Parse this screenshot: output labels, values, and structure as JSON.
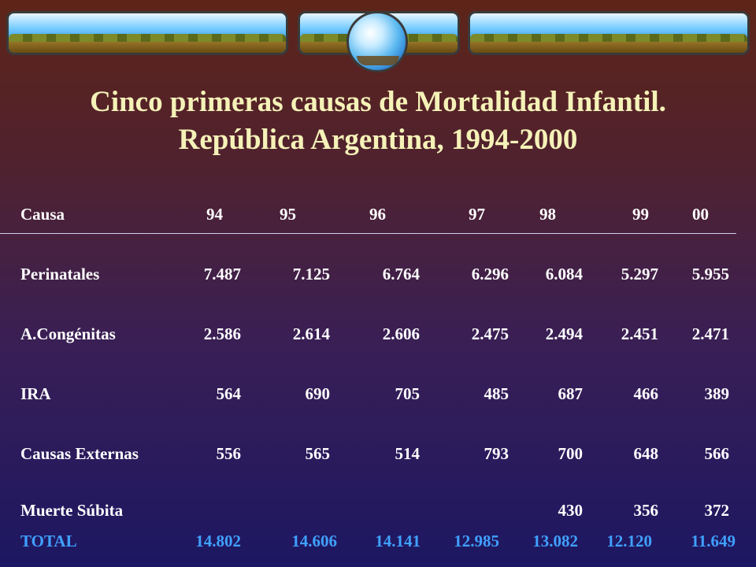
{
  "title": {
    "line1": "Cinco primeras causas de Mortalidad Infantil.",
    "line2": "República Argentina, 1994-2000"
  },
  "table": {
    "header": {
      "label": "Causa",
      "years": [
        "94",
        "95",
        "96",
        "97",
        "98",
        "99",
        "00"
      ]
    },
    "rows": [
      {
        "label": "Perinatales",
        "values": [
          "7.487",
          "7.125",
          "6.764",
          "6.296",
          "6.084",
          "5.297",
          "5.955"
        ]
      },
      {
        "label": "A.Congénitas",
        "values": [
          "2.586",
          "2.614",
          "2.606",
          "2.475",
          "2.494",
          "2.451",
          "2.471"
        ]
      },
      {
        "label": "IRA",
        "values": [
          "564",
          "690",
          "705",
          "485",
          "687",
          "466",
          "389"
        ]
      },
      {
        "label": "Causas Externas",
        "values": [
          "556",
          "565",
          "514",
          "793",
          "700",
          "648",
          "566"
        ]
      },
      {
        "label": "Muerte Súbita",
        "values": [
          "",
          "",
          "",
          "",
          "430",
          "356",
          "372"
        ]
      }
    ],
    "total": {
      "label": "TOTAL",
      "values": [
        "14.802",
        "14.606",
        "14.141",
        "12.985",
        "13.082",
        "12.120",
        "11.649"
      ]
    }
  },
  "colors": {
    "title": "#f5f2b8",
    "text": "#ffffff",
    "total": "#40a0ff"
  }
}
